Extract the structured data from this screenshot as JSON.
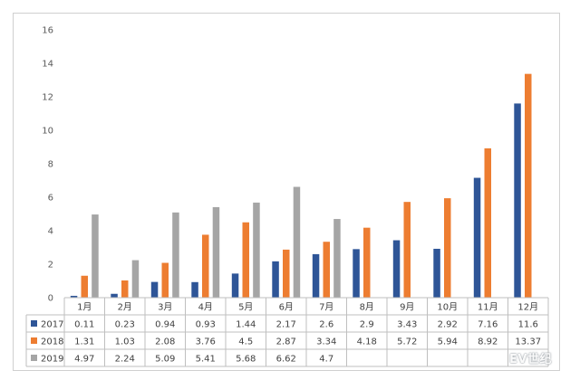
{
  "chart_data": {
    "type": "bar",
    "title": "",
    "xlabel": "",
    "ylabel": "",
    "categories": [
      "1月",
      "2月",
      "3月",
      "4月",
      "5月",
      "6月",
      "7月",
      "8月",
      "9月",
      "10月",
      "11月",
      "12月"
    ],
    "y_ticks": [
      "0",
      "2",
      "4",
      "6",
      "8",
      "10",
      "12",
      "14",
      "16"
    ],
    "ylim": [
      0,
      16
    ],
    "grid": false,
    "legend": "data-table-left",
    "series": [
      {
        "name": "2017",
        "color": "#2e5597",
        "values": [
          0.11,
          0.23,
          0.94,
          0.93,
          1.44,
          2.17,
          2.6,
          2.9,
          3.43,
          2.92,
          7.16,
          11.6
        ],
        "labels": [
          "0.11",
          "0.23",
          "0.94",
          "0.93",
          "1.44",
          "2.17",
          "2.6",
          "2.9",
          "3.43",
          "2.92",
          "7.16",
          "11.6"
        ]
      },
      {
        "name": "2018",
        "color": "#ed7d31",
        "values": [
          1.31,
          1.03,
          2.08,
          3.76,
          4.5,
          2.87,
          3.34,
          4.18,
          5.72,
          5.94,
          8.92,
          13.37
        ],
        "labels": [
          "1.31",
          "1.03",
          "2.08",
          "3.76",
          "4.5",
          "2.87",
          "3.34",
          "4.18",
          "5.72",
          "5.94",
          "8.92",
          "13.37"
        ]
      },
      {
        "name": "2019",
        "color": "#a5a5a5",
        "values": [
          4.97,
          2.24,
          5.09,
          5.41,
          5.68,
          6.62,
          4.7,
          null,
          null,
          null,
          null,
          null
        ],
        "labels": [
          "4.97",
          "2.24",
          "5.09",
          "5.41",
          "5.68",
          "6.62",
          "4.7",
          "",
          "",
          "",
          "",
          ""
        ]
      }
    ]
  },
  "watermark": "EV世纪"
}
